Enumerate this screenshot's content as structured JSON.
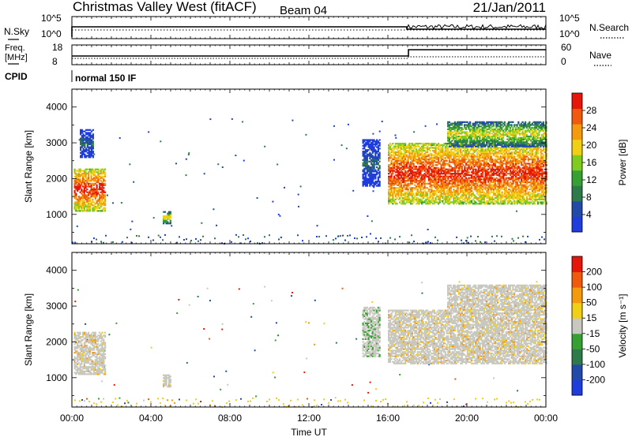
{
  "header": {
    "station": "Christmas Valley West (fitACF)",
    "beam": "Beam 04",
    "date": "21/Jan/2011"
  },
  "noise_panel": {
    "left_label": "N.Sky",
    "right_label": "N.Search",
    "left_ticks": [
      "10^5",
      "10^0"
    ],
    "right_ticks": [
      "10^5",
      "10^0"
    ]
  },
  "freq_panel": {
    "left_label_line1": "Freq.",
    "left_label_line2": "[MHz]",
    "right_label": "Nave",
    "left_ticks": [
      "18",
      "8"
    ],
    "right_ticks": [
      "60",
      "0"
    ]
  },
  "cpid": {
    "label": "CPID",
    "value": "normal 150 IF"
  },
  "time_axis": {
    "label": "Time UT",
    "ticks": [
      "00:00",
      "04:00",
      "08:00",
      "12:00",
      "16:00",
      "20:00",
      "00:00"
    ]
  },
  "chart_data": [
    {
      "type": "heatmap",
      "name": "power",
      "ylabel": "Slant Range [km]",
      "yticks": [
        "1000",
        "2000",
        "3000",
        "4000"
      ],
      "ylim": [
        180,
        4500
      ],
      "xlim_hours": [
        0,
        24
      ],
      "colorbar": {
        "label": "Power [dB]",
        "ticks": [
          "4",
          "8",
          "12",
          "16",
          "20",
          "24",
          "28"
        ],
        "colors": [
          "#1f3cdc",
          "#234aa8",
          "#2e7a4a",
          "#37a032",
          "#7fcc1e",
          "#f0cf14",
          "#f59a0e",
          "#ef5a0c",
          "#e61608"
        ]
      },
      "regions": [
        {
          "t": [
            0.1,
            1.7
          ],
          "r": [
            1100,
            2300
          ],
          "level": "high"
        },
        {
          "t": [
            0.4,
            1.1
          ],
          "r": [
            2600,
            3400
          ],
          "level": "low"
        },
        {
          "t": [
            4.6,
            5.0
          ],
          "r": [
            750,
            1100
          ],
          "level": "mid"
        },
        {
          "t": [
            14.7,
            15.6
          ],
          "r": [
            1800,
            3100
          ],
          "level": "low"
        },
        {
          "t": [
            16.0,
            24.0
          ],
          "r": [
            1300,
            3000
          ],
          "level": "high"
        },
        {
          "t": [
            19.0,
            24.0
          ],
          "r": [
            2900,
            3600
          ],
          "level": "mid"
        }
      ]
    },
    {
      "type": "heatmap",
      "name": "velocity",
      "ylabel": "Slant Range [km]",
      "yticks": [
        "1000",
        "2000",
        "3000",
        "4000"
      ],
      "ylim": [
        180,
        4500
      ],
      "xlim_hours": [
        0,
        24
      ],
      "colorbar": {
        "label": "Velocity [m s⁻¹]",
        "ticks": [
          "200",
          "100",
          "50",
          "15",
          "-15",
          "-50",
          "-100",
          "-200"
        ],
        "colors": [
          "#1f3cdc",
          "#234aa8",
          "#2e7a4a",
          "#37a032",
          "#c8c8c0",
          "#f0cf14",
          "#f59a0e",
          "#ef5a0c",
          "#e61608"
        ]
      },
      "regions": [
        {
          "t": [
            0.1,
            1.7
          ],
          "r": [
            1100,
            2300
          ],
          "level": "gs"
        },
        {
          "t": [
            4.6,
            5.0
          ],
          "r": [
            750,
            1100
          ],
          "level": "gs"
        },
        {
          "t": [
            14.7,
            15.6
          ],
          "r": [
            1600,
            3000
          ],
          "level": "mixed"
        },
        {
          "t": [
            16.0,
            24.0
          ],
          "r": [
            1400,
            2900
          ],
          "level": "gs"
        },
        {
          "t": [
            19.0,
            24.0
          ],
          "r": [
            2900,
            3600
          ],
          "level": "gs"
        }
      ]
    }
  ]
}
